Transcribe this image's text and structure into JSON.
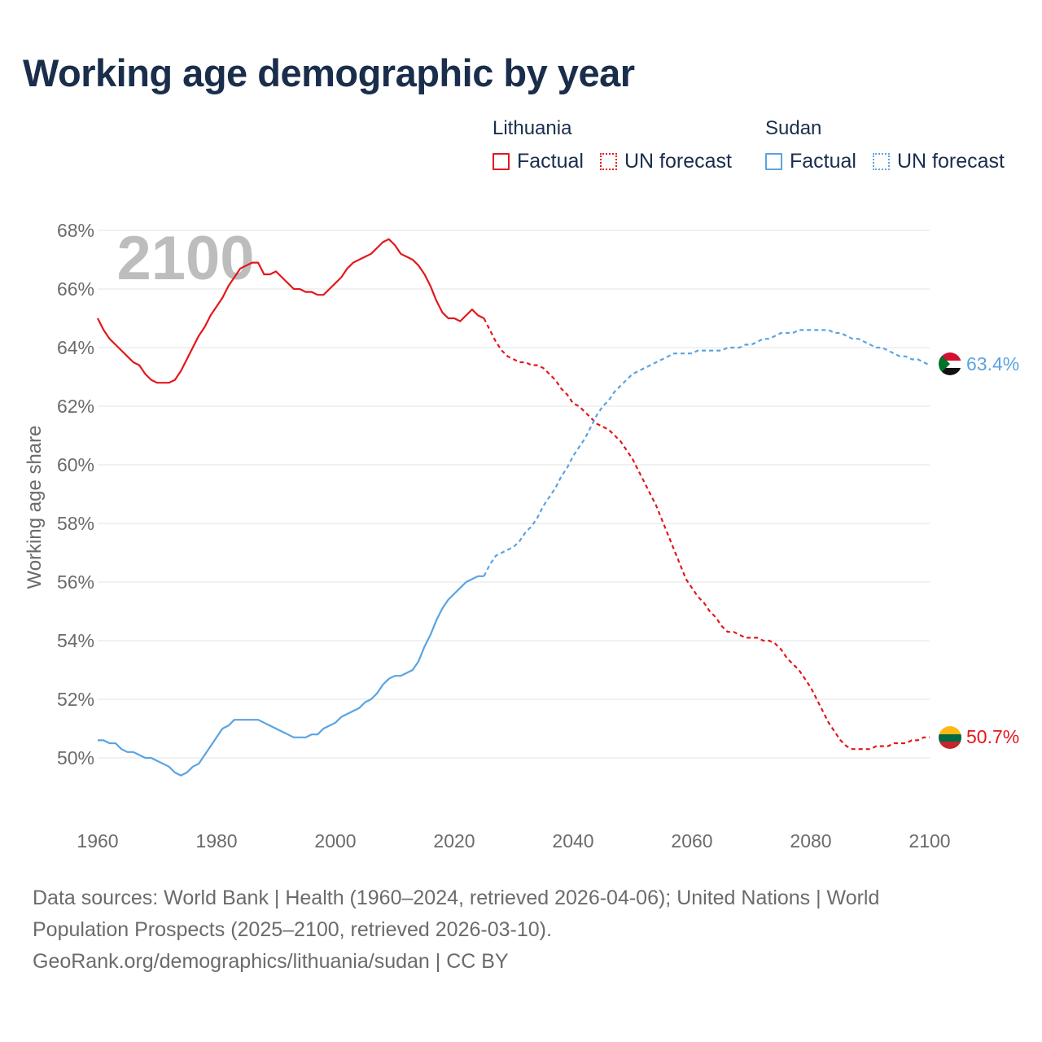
{
  "title": "Working age demographic by year",
  "legend": {
    "groups": [
      {
        "country": "Lithuania",
        "color": "#e3171c",
        "factual_label": "Factual",
        "forecast_label": "UN forecast"
      },
      {
        "country": "Sudan",
        "color": "#5aa3e2",
        "factual_label": "Factual",
        "forecast_label": "UN forecast"
      }
    ]
  },
  "chart_data": {
    "type": "line",
    "title": "Working age demographic by year",
    "ylabel": "Working age share",
    "xlabel": "",
    "xlim": [
      1960,
      2100
    ],
    "ylim": [
      48,
      68
    ],
    "x_ticks": [
      1960,
      1980,
      2000,
      2020,
      2040,
      2060,
      2080,
      2100
    ],
    "x_tick_labels": [
      "1960",
      "1980",
      "2000",
      "2020",
      "2040",
      "2060",
      "2080",
      "2100"
    ],
    "y_ticks": [
      50,
      52,
      54,
      56,
      58,
      60,
      62,
      64,
      66,
      68
    ],
    "y_tick_labels": [
      "50%",
      "52%",
      "54%",
      "56%",
      "58%",
      "60%",
      "62%",
      "64%",
      "66%",
      "68%"
    ],
    "grid": true,
    "year_watermark": "2100",
    "series": [
      {
        "name": "Lithuania",
        "color": "#e3171c",
        "factual_until": 2025,
        "end_label": "50.7%",
        "points": [
          [
            1960,
            65.0
          ],
          [
            1961,
            64.6
          ],
          [
            1962,
            64.3
          ],
          [
            1963,
            64.1
          ],
          [
            1964,
            63.9
          ],
          [
            1965,
            63.7
          ],
          [
            1966,
            63.5
          ],
          [
            1967,
            63.4
          ],
          [
            1968,
            63.1
          ],
          [
            1969,
            62.9
          ],
          [
            1970,
            62.8
          ],
          [
            1971,
            62.8
          ],
          [
            1972,
            62.8
          ],
          [
            1973,
            62.9
          ],
          [
            1974,
            63.2
          ],
          [
            1975,
            63.6
          ],
          [
            1976,
            64.0
          ],
          [
            1977,
            64.4
          ],
          [
            1978,
            64.7
          ],
          [
            1979,
            65.1
          ],
          [
            1980,
            65.4
          ],
          [
            1981,
            65.7
          ],
          [
            1982,
            66.1
          ],
          [
            1983,
            66.4
          ],
          [
            1984,
            66.7
          ],
          [
            1985,
            66.8
          ],
          [
            1986,
            66.9
          ],
          [
            1987,
            66.9
          ],
          [
            1988,
            66.5
          ],
          [
            1989,
            66.5
          ],
          [
            1990,
            66.6
          ],
          [
            1991,
            66.4
          ],
          [
            1992,
            66.2
          ],
          [
            1993,
            66.0
          ],
          [
            1994,
            66.0
          ],
          [
            1995,
            65.9
          ],
          [
            1996,
            65.9
          ],
          [
            1997,
            65.8
          ],
          [
            1998,
            65.8
          ],
          [
            1999,
            66.0
          ],
          [
            2000,
            66.2
          ],
          [
            2001,
            66.4
          ],
          [
            2002,
            66.7
          ],
          [
            2003,
            66.9
          ],
          [
            2004,
            67.0
          ],
          [
            2005,
            67.1
          ],
          [
            2006,
            67.2
          ],
          [
            2007,
            67.4
          ],
          [
            2008,
            67.6
          ],
          [
            2009,
            67.7
          ],
          [
            2010,
            67.5
          ],
          [
            2011,
            67.2
          ],
          [
            2012,
            67.1
          ],
          [
            2013,
            67.0
          ],
          [
            2014,
            66.8
          ],
          [
            2015,
            66.5
          ],
          [
            2016,
            66.1
          ],
          [
            2017,
            65.6
          ],
          [
            2018,
            65.2
          ],
          [
            2019,
            65.0
          ],
          [
            2020,
            65.0
          ],
          [
            2021,
            64.9
          ],
          [
            2022,
            65.1
          ],
          [
            2023,
            65.3
          ],
          [
            2024,
            65.1
          ],
          [
            2025,
            65.0
          ],
          [
            2026,
            64.6
          ],
          [
            2027,
            64.2
          ],
          [
            2028,
            63.9
          ],
          [
            2029,
            63.7
          ],
          [
            2030,
            63.6
          ],
          [
            2031,
            63.5
          ],
          [
            2032,
            63.5
          ],
          [
            2033,
            63.4
          ],
          [
            2034,
            63.4
          ],
          [
            2035,
            63.3
          ],
          [
            2036,
            63.1
          ],
          [
            2037,
            62.9
          ],
          [
            2038,
            62.6
          ],
          [
            2039,
            62.4
          ],
          [
            2040,
            62.1
          ],
          [
            2041,
            62.0
          ],
          [
            2042,
            61.8
          ],
          [
            2043,
            61.6
          ],
          [
            2044,
            61.4
          ],
          [
            2045,
            61.3
          ],
          [
            2046,
            61.2
          ],
          [
            2047,
            61.0
          ],
          [
            2048,
            60.8
          ],
          [
            2049,
            60.5
          ],
          [
            2050,
            60.2
          ],
          [
            2051,
            59.8
          ],
          [
            2052,
            59.4
          ],
          [
            2053,
            59.0
          ],
          [
            2054,
            58.6
          ],
          [
            2055,
            58.1
          ],
          [
            2056,
            57.6
          ],
          [
            2057,
            57.1
          ],
          [
            2058,
            56.6
          ],
          [
            2059,
            56.1
          ],
          [
            2060,
            55.8
          ],
          [
            2061,
            55.5
          ],
          [
            2062,
            55.3
          ],
          [
            2063,
            55.0
          ],
          [
            2064,
            54.8
          ],
          [
            2065,
            54.5
          ],
          [
            2066,
            54.3
          ],
          [
            2067,
            54.3
          ],
          [
            2068,
            54.2
          ],
          [
            2069,
            54.1
          ],
          [
            2070,
            54.1
          ],
          [
            2071,
            54.1
          ],
          [
            2072,
            54.0
          ],
          [
            2073,
            54.0
          ],
          [
            2074,
            53.9
          ],
          [
            2075,
            53.7
          ],
          [
            2076,
            53.4
          ],
          [
            2077,
            53.2
          ],
          [
            2078,
            53.0
          ],
          [
            2079,
            52.7
          ],
          [
            2080,
            52.4
          ],
          [
            2081,
            52.0
          ],
          [
            2082,
            51.6
          ],
          [
            2083,
            51.2
          ],
          [
            2084,
            50.9
          ],
          [
            2085,
            50.6
          ],
          [
            2086,
            50.4
          ],
          [
            2087,
            50.3
          ],
          [
            2088,
            50.3
          ],
          [
            2089,
            50.3
          ],
          [
            2090,
            50.3
          ],
          [
            2091,
            50.4
          ],
          [
            2092,
            50.4
          ],
          [
            2093,
            50.4
          ],
          [
            2094,
            50.5
          ],
          [
            2095,
            50.5
          ],
          [
            2096,
            50.5
          ],
          [
            2097,
            50.6
          ],
          [
            2098,
            50.6
          ],
          [
            2099,
            50.7
          ],
          [
            2100,
            50.7
          ]
        ]
      },
      {
        "name": "Sudan",
        "color": "#5aa3e2",
        "factual_until": 2025,
        "end_label": "63.4%",
        "points": [
          [
            1960,
            50.6
          ],
          [
            1961,
            50.6
          ],
          [
            1962,
            50.5
          ],
          [
            1963,
            50.5
          ],
          [
            1964,
            50.3
          ],
          [
            1965,
            50.2
          ],
          [
            1966,
            50.2
          ],
          [
            1967,
            50.1
          ],
          [
            1968,
            50.0
          ],
          [
            1969,
            50.0
          ],
          [
            1970,
            49.9
          ],
          [
            1971,
            49.8
          ],
          [
            1972,
            49.7
          ],
          [
            1973,
            49.5
          ],
          [
            1974,
            49.4
          ],
          [
            1975,
            49.5
          ],
          [
            1976,
            49.7
          ],
          [
            1977,
            49.8
          ],
          [
            1978,
            50.1
          ],
          [
            1979,
            50.4
          ],
          [
            1980,
            50.7
          ],
          [
            1981,
            51.0
          ],
          [
            1982,
            51.1
          ],
          [
            1983,
            51.3
          ],
          [
            1984,
            51.3
          ],
          [
            1985,
            51.3
          ],
          [
            1986,
            51.3
          ],
          [
            1987,
            51.3
          ],
          [
            1988,
            51.2
          ],
          [
            1989,
            51.1
          ],
          [
            1990,
            51.0
          ],
          [
            1991,
            50.9
          ],
          [
            1992,
            50.8
          ],
          [
            1993,
            50.7
          ],
          [
            1994,
            50.7
          ],
          [
            1995,
            50.7
          ],
          [
            1996,
            50.8
          ],
          [
            1997,
            50.8
          ],
          [
            1998,
            51.0
          ],
          [
            1999,
            51.1
          ],
          [
            2000,
            51.2
          ],
          [
            2001,
            51.4
          ],
          [
            2002,
            51.5
          ],
          [
            2003,
            51.6
          ],
          [
            2004,
            51.7
          ],
          [
            2005,
            51.9
          ],
          [
            2006,
            52.0
          ],
          [
            2007,
            52.2
          ],
          [
            2008,
            52.5
          ],
          [
            2009,
            52.7
          ],
          [
            2010,
            52.8
          ],
          [
            2011,
            52.8
          ],
          [
            2012,
            52.9
          ],
          [
            2013,
            53.0
          ],
          [
            2014,
            53.3
          ],
          [
            2015,
            53.8
          ],
          [
            2016,
            54.2
          ],
          [
            2017,
            54.7
          ],
          [
            2018,
            55.1
          ],
          [
            2019,
            55.4
          ],
          [
            2020,
            55.6
          ],
          [
            2021,
            55.8
          ],
          [
            2022,
            56.0
          ],
          [
            2023,
            56.1
          ],
          [
            2024,
            56.2
          ],
          [
            2025,
            56.2
          ],
          [
            2026,
            56.6
          ],
          [
            2027,
            56.9
          ],
          [
            2028,
            57.0
          ],
          [
            2029,
            57.1
          ],
          [
            2030,
            57.2
          ],
          [
            2031,
            57.4
          ],
          [
            2032,
            57.7
          ],
          [
            2033,
            57.9
          ],
          [
            2034,
            58.2
          ],
          [
            2035,
            58.6
          ],
          [
            2036,
            58.9
          ],
          [
            2037,
            59.2
          ],
          [
            2038,
            59.6
          ],
          [
            2039,
            59.9
          ],
          [
            2040,
            60.3
          ],
          [
            2041,
            60.6
          ],
          [
            2042,
            60.9
          ],
          [
            2043,
            61.3
          ],
          [
            2044,
            61.7
          ],
          [
            2045,
            62.0
          ],
          [
            2046,
            62.2
          ],
          [
            2047,
            62.5
          ],
          [
            2048,
            62.7
          ],
          [
            2049,
            62.9
          ],
          [
            2050,
            63.1
          ],
          [
            2051,
            63.2
          ],
          [
            2052,
            63.3
          ],
          [
            2053,
            63.4
          ],
          [
            2054,
            63.5
          ],
          [
            2055,
            63.6
          ],
          [
            2056,
            63.7
          ],
          [
            2057,
            63.8
          ],
          [
            2058,
            63.8
          ],
          [
            2059,
            63.8
          ],
          [
            2060,
            63.8
          ],
          [
            2061,
            63.9
          ],
          [
            2062,
            63.9
          ],
          [
            2063,
            63.9
          ],
          [
            2064,
            63.9
          ],
          [
            2065,
            63.9
          ],
          [
            2066,
            64.0
          ],
          [
            2067,
            64.0
          ],
          [
            2068,
            64.0
          ],
          [
            2069,
            64.1
          ],
          [
            2070,
            64.1
          ],
          [
            2071,
            64.2
          ],
          [
            2072,
            64.3
          ],
          [
            2073,
            64.3
          ],
          [
            2074,
            64.4
          ],
          [
            2075,
            64.5
          ],
          [
            2076,
            64.5
          ],
          [
            2077,
            64.5
          ],
          [
            2078,
            64.6
          ],
          [
            2079,
            64.6
          ],
          [
            2080,
            64.6
          ],
          [
            2081,
            64.6
          ],
          [
            2082,
            64.6
          ],
          [
            2083,
            64.6
          ],
          [
            2084,
            64.5
          ],
          [
            2085,
            64.5
          ],
          [
            2086,
            64.4
          ],
          [
            2087,
            64.3
          ],
          [
            2088,
            64.3
          ],
          [
            2089,
            64.2
          ],
          [
            2090,
            64.1
          ],
          [
            2091,
            64.0
          ],
          [
            2092,
            64.0
          ],
          [
            2093,
            63.9
          ],
          [
            2094,
            63.8
          ],
          [
            2095,
            63.7
          ],
          [
            2096,
            63.7
          ],
          [
            2097,
            63.6
          ],
          [
            2098,
            63.6
          ],
          [
            2099,
            63.5
          ],
          [
            2100,
            63.4
          ]
        ]
      }
    ]
  },
  "footer": {
    "line1": "Data sources: World Bank | Health (1960–2024, retrieved 2026-04-06); United Nations | World",
    "line2": "Population Prospects (2025–2100, retrieved 2026-03-10).",
    "line3": "GeoRank.org/demographics/lithuania/sudan | CC BY"
  }
}
